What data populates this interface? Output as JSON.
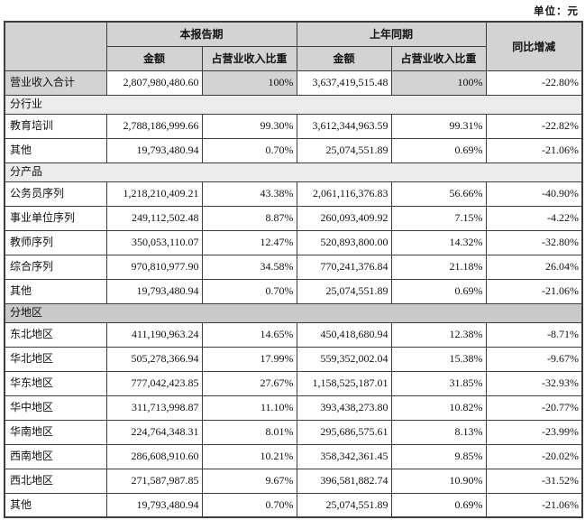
{
  "unit_label": "单位：元",
  "colors": {
    "page_bg": "#ffffff",
    "text": "#111111",
    "border": "#3d3d3d",
    "header_bg": "#d3d3d3",
    "section_light": "#ececec",
    "section_dark": "#c9c9c9"
  },
  "table": {
    "header": {
      "current_period": "本报告期",
      "prior_period": "上年同期",
      "yoy_change": "同比增减",
      "amount": "金额",
      "pct_of_revenue": "占营业收入比重"
    },
    "rows": [
      {
        "type": "data",
        "shaded": true,
        "label": "营业收入合计",
        "cur_amount": "2,807,980,480.60",
        "cur_pct": "100%",
        "prior_amount": "3,637,419,515.48",
        "prior_pct": "100%",
        "yoy": "-22.80%"
      },
      {
        "type": "section",
        "shade": "light",
        "label": "分行业"
      },
      {
        "type": "data",
        "label": "教育培训",
        "cur_amount": "2,788,186,999.66",
        "cur_pct": "99.30%",
        "prior_amount": "3,612,344,963.59",
        "prior_pct": "99.31%",
        "yoy": "-22.82%"
      },
      {
        "type": "data",
        "label": "其他",
        "cur_amount": "19,793,480.94",
        "cur_pct": "0.70%",
        "prior_amount": "25,074,551.89",
        "prior_pct": "0.69%",
        "yoy": "-21.06%"
      },
      {
        "type": "section",
        "shade": "light",
        "label": "分产品"
      },
      {
        "type": "data",
        "label": "公务员序列",
        "cur_amount": "1,218,210,409.21",
        "cur_pct": "43.38%",
        "prior_amount": "2,061,116,376.83",
        "prior_pct": "56.66%",
        "yoy": "-40.90%"
      },
      {
        "type": "data",
        "label": "事业单位序列",
        "cur_amount": "249,112,502.48",
        "cur_pct": "8.87%",
        "prior_amount": "260,093,409.92",
        "prior_pct": "7.15%",
        "yoy": "-4.22%"
      },
      {
        "type": "data",
        "label": "教师序列",
        "cur_amount": "350,053,110.07",
        "cur_pct": "12.47%",
        "prior_amount": "520,893,800.00",
        "prior_pct": "14.32%",
        "yoy": "-32.80%"
      },
      {
        "type": "data",
        "label": "综合序列",
        "cur_amount": "970,810,977.90",
        "cur_pct": "34.58%",
        "prior_amount": "770,241,376.84",
        "prior_pct": "21.18%",
        "yoy": "26.04%"
      },
      {
        "type": "data",
        "label": "其他",
        "cur_amount": "19,793,480.94",
        "cur_pct": "0.70%",
        "prior_amount": "25,074,551.89",
        "prior_pct": "0.69%",
        "yoy": "-21.06%"
      },
      {
        "type": "section",
        "shade": "dark",
        "label": "分地区"
      },
      {
        "type": "data",
        "label": "东北地区",
        "cur_amount": "411,190,963.24",
        "cur_pct": "14.65%",
        "prior_amount": "450,418,680.94",
        "prior_pct": "12.38%",
        "yoy": "-8.71%"
      },
      {
        "type": "data",
        "label": "华北地区",
        "cur_amount": "505,278,366.94",
        "cur_pct": "17.99%",
        "prior_amount": "559,352,002.04",
        "prior_pct": "15.38%",
        "yoy": "-9.67%"
      },
      {
        "type": "data",
        "label": "华东地区",
        "cur_amount": "777,042,423.85",
        "cur_pct": "27.67%",
        "prior_amount": "1,158,525,187.01",
        "prior_pct": "31.85%",
        "yoy": "-32.93%"
      },
      {
        "type": "data",
        "label": "华中地区",
        "cur_amount": "311,713,998.87",
        "cur_pct": "11.10%",
        "prior_amount": "393,438,273.80",
        "prior_pct": "10.82%",
        "yoy": "-20.77%"
      },
      {
        "type": "data",
        "label": "华南地区",
        "cur_amount": "224,764,348.31",
        "cur_pct": "8.01%",
        "prior_amount": "295,686,575.61",
        "prior_pct": "8.13%",
        "yoy": "-23.99%"
      },
      {
        "type": "data",
        "label": "西南地区",
        "cur_amount": "286,608,910.60",
        "cur_pct": "10.21%",
        "prior_amount": "358,342,361.45",
        "prior_pct": "9.85%",
        "yoy": "-20.02%"
      },
      {
        "type": "data",
        "label": "西北地区",
        "cur_amount": "271,587,987.85",
        "cur_pct": "9.67%",
        "prior_amount": "396,581,882.74",
        "prior_pct": "10.90%",
        "yoy": "-31.52%"
      },
      {
        "type": "data",
        "label": "其他",
        "cur_amount": "19,793,480.94",
        "cur_pct": "0.70%",
        "prior_amount": "25,074,551.89",
        "prior_pct": "0.69%",
        "yoy": "-21.06%"
      }
    ]
  }
}
